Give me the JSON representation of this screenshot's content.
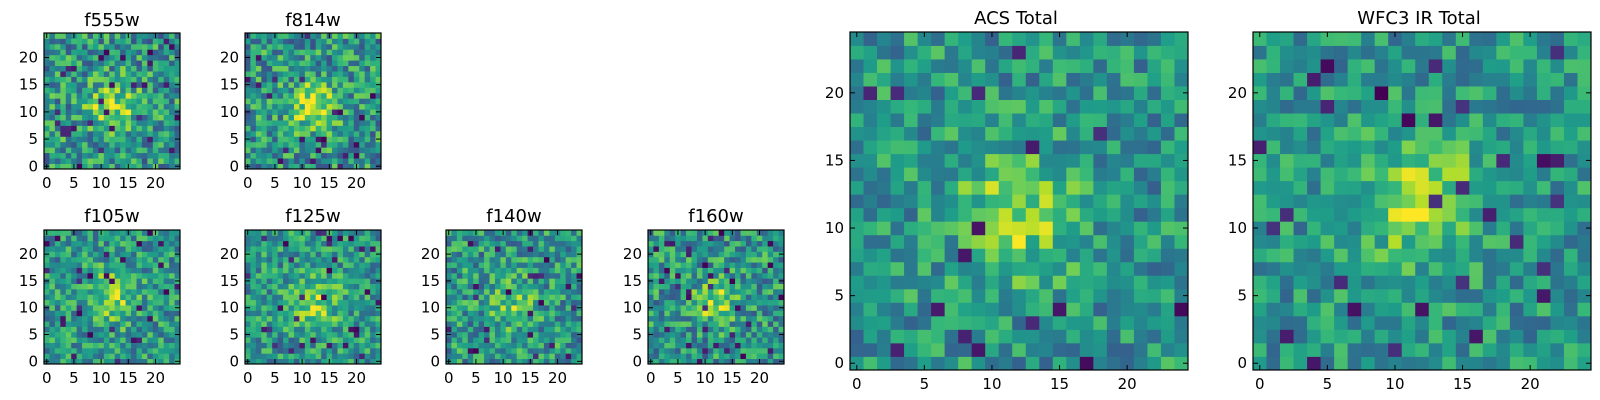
{
  "figure": {
    "description": "Grid of 2D image cutouts rendered with a viridis colormap"
  },
  "chart_data": [
    {
      "type": "heatmap",
      "title": "f555w",
      "grid_size": 25,
      "xticks": [
        0,
        5,
        10,
        15,
        20
      ],
      "yticks": [
        0,
        5,
        10,
        15,
        20
      ],
      "colormap": "viridis",
      "source_peak": [
        12,
        11
      ],
      "source_sigma": 3.2,
      "source_amp": 0.35,
      "noise": 0.28,
      "dark_fraction": 0.05,
      "seed": 101
    },
    {
      "type": "heatmap",
      "title": "f814w",
      "grid_size": 25,
      "xticks": [
        0,
        5,
        10,
        15,
        20
      ],
      "yticks": [
        0,
        5,
        10,
        15,
        20
      ],
      "colormap": "viridis",
      "source_peak": [
        12,
        11
      ],
      "source_sigma": 3.0,
      "source_amp": 0.4,
      "noise": 0.28,
      "dark_fraction": 0.05,
      "seed": 202
    },
    {
      "type": "heatmap",
      "title": "f105w",
      "grid_size": 25,
      "xticks": [
        0,
        5,
        10,
        15,
        20
      ],
      "yticks": [
        0,
        5,
        10,
        15,
        20
      ],
      "colormap": "viridis",
      "source_peak": [
        12,
        12
      ],
      "source_sigma": 3.5,
      "source_amp": 0.3,
      "noise": 0.24,
      "dark_fraction": 0.05,
      "seed": 303
    },
    {
      "type": "heatmap",
      "title": "f125w",
      "grid_size": 25,
      "xticks": [
        0,
        5,
        10,
        15,
        20
      ],
      "yticks": [
        0,
        5,
        10,
        15,
        20
      ],
      "colormap": "viridis",
      "source_peak": [
        12,
        11
      ],
      "source_sigma": 3.5,
      "source_amp": 0.3,
      "noise": 0.24,
      "dark_fraction": 0.05,
      "seed": 404
    },
    {
      "type": "heatmap",
      "title": "f140w",
      "grid_size": 25,
      "xticks": [
        0,
        5,
        10,
        15,
        20
      ],
      "yticks": [
        0,
        5,
        10,
        15,
        20
      ],
      "colormap": "viridis",
      "source_peak": [
        12,
        11
      ],
      "source_sigma": 3.0,
      "source_amp": 0.25,
      "noise": 0.26,
      "dark_fraction": 0.05,
      "seed": 505
    },
    {
      "type": "heatmap",
      "title": "f160w",
      "grid_size": 25,
      "xticks": [
        0,
        5,
        10,
        15,
        20
      ],
      "yticks": [
        0,
        5,
        10,
        15,
        20
      ],
      "colormap": "viridis",
      "source_peak": [
        12,
        11
      ],
      "source_sigma": 2.8,
      "source_amp": 0.35,
      "noise": 0.26,
      "dark_fraction": 0.05,
      "seed": 606
    },
    {
      "type": "heatmap",
      "title": "ACS Total",
      "grid_size": 25,
      "xticks": [
        0,
        5,
        10,
        15,
        20
      ],
      "yticks": [
        0,
        5,
        10,
        15,
        20
      ],
      "colormap": "viridis",
      "source_peak": [
        12,
        11
      ],
      "source_sigma": 3.0,
      "source_amp": 0.35,
      "noise": 0.22,
      "dark_fraction": 0.04,
      "seed": 707
    },
    {
      "type": "heatmap",
      "title": "WFC3 IR Total",
      "grid_size": 25,
      "xticks": [
        0,
        5,
        10,
        15,
        20
      ],
      "yticks": [
        0,
        5,
        10,
        15,
        20
      ],
      "colormap": "viridis",
      "source_peak": [
        12,
        12
      ],
      "source_sigma": 3.2,
      "source_amp": 0.35,
      "noise": 0.2,
      "dark_fraction": 0.04,
      "seed": 808
    }
  ]
}
